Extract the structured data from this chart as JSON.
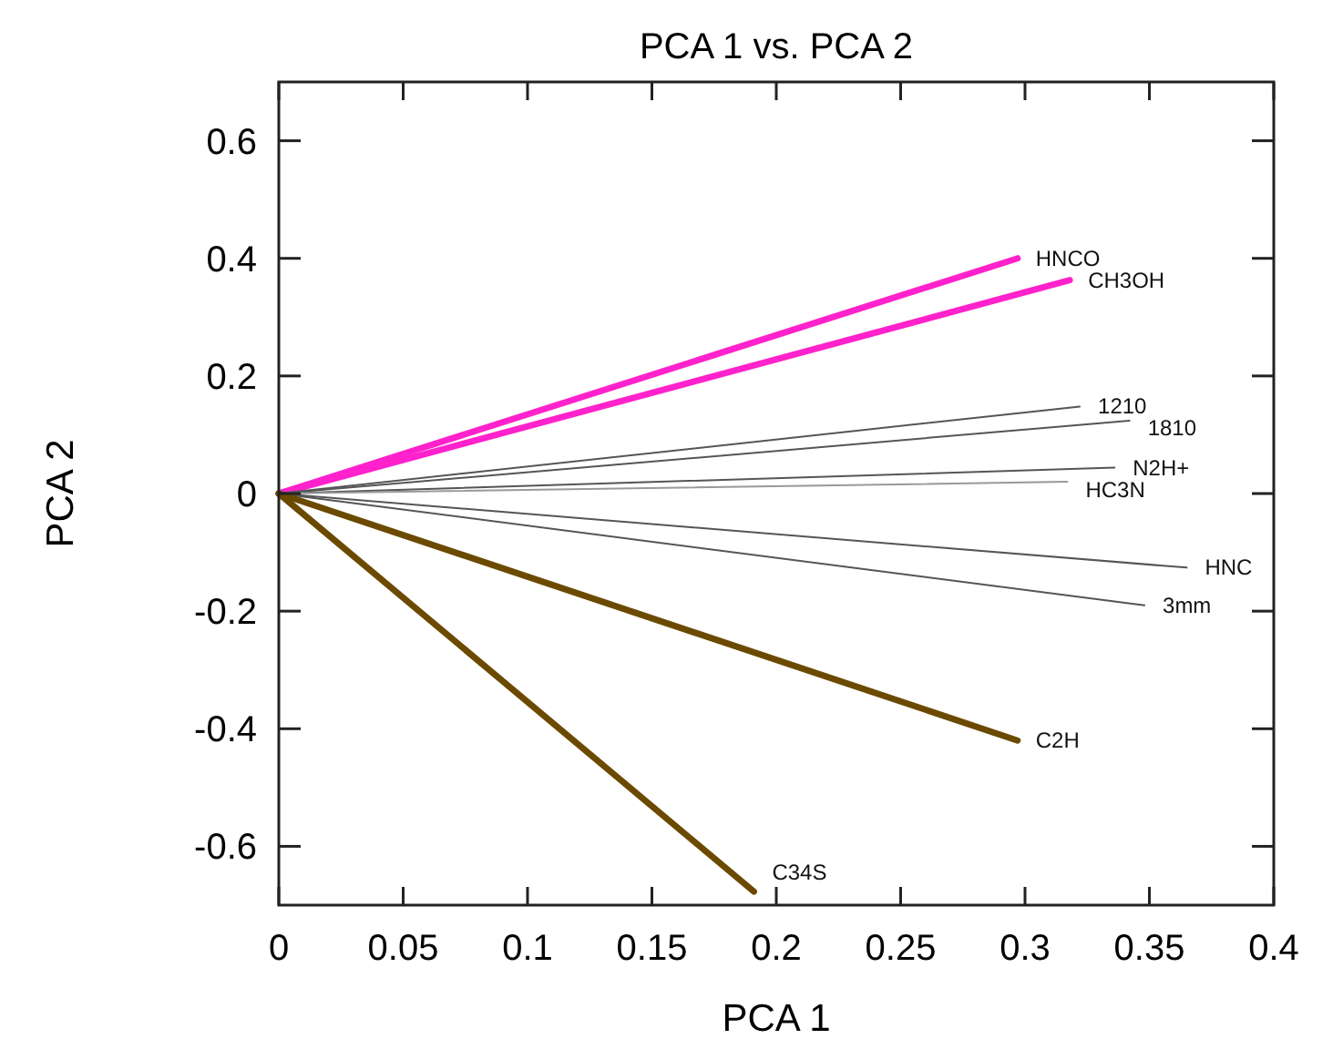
{
  "chart_data": {
    "type": "line",
    "title": "PCA 1 vs. PCA 2",
    "xlabel": "PCA 1",
    "ylabel": "PCA 2",
    "xlim": [
      0,
      0.4
    ],
    "xticks": [
      0,
      0.05,
      0.1,
      0.15,
      0.2,
      0.25,
      0.3,
      0.35,
      0.4
    ],
    "ylim": [
      -0.7,
      0.7
    ],
    "yticks": [
      -0.6,
      -0.4,
      -0.2,
      0,
      0.2,
      0.4,
      0.6
    ],
    "grid": false,
    "marker": "none",
    "line_style": "solid",
    "series": [
      {
        "name": "HNCO",
        "color": "#ff22cc",
        "x": [
          0,
          0.297
        ],
        "values": [
          0,
          0.4
        ]
      },
      {
        "name": "CH3OH",
        "color": "#ff22cc",
        "x": [
          0,
          0.318
        ],
        "values": [
          0,
          0.363
        ]
      },
      {
        "name": "1210",
        "color": "#555555",
        "x": [
          0,
          0.322
        ],
        "values": [
          0,
          0.148
        ]
      },
      {
        "name": "1810",
        "color": "#555555",
        "x": [
          0,
          0.342
        ],
        "values": [
          0,
          0.124
        ]
      },
      {
        "name": "N2H+",
        "color": "#555555",
        "x": [
          0,
          0.336
        ],
        "values": [
          0,
          0.044
        ]
      },
      {
        "name": "HC3N",
        "color": "#999999",
        "x": [
          0,
          0.317
        ],
        "values": [
          0,
          0.02
        ]
      },
      {
        "name": "HNC",
        "color": "#555555",
        "x": [
          0,
          0.365
        ],
        "values": [
          0,
          -0.126
        ]
      },
      {
        "name": "3mm",
        "color": "#555555",
        "x": [
          0,
          0.348
        ],
        "values": [
          0,
          -0.19
        ]
      },
      {
        "name": "C2H",
        "color": "#6b4a00",
        "x": [
          0,
          0.297
        ],
        "values": [
          0,
          -0.42
        ]
      },
      {
        "name": "C34S",
        "color": "#6b4a00",
        "x": [
          0,
          0.191
        ],
        "values": [
          0,
          -0.677
        ]
      }
    ]
  }
}
